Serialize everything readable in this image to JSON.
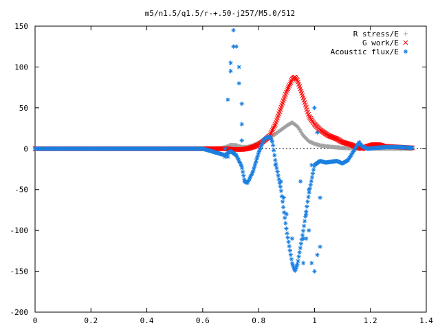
{
  "chart_data": {
    "type": "scatter",
    "title": "m5/n1.5/q1.5/r-+.50-j257/M5.0/512",
    "xlabel": "",
    "ylabel": "",
    "xlim": [
      0,
      1.4
    ],
    "ylim": [
      -200,
      150
    ],
    "xticks": [
      0,
      0.2,
      0.4,
      0.6,
      0.8,
      1,
      1.2,
      1.4
    ],
    "xtick_labels": [
      "0",
      "0.2",
      "0.4",
      "0.6",
      "0.8",
      "1",
      "1.2",
      "1.4"
    ],
    "yticks": [
      -200,
      -150,
      -100,
      -50,
      0,
      50,
      100,
      150
    ],
    "ytick_labels": [
      "-200",
      "-150",
      "-100",
      "-50",
      "0",
      "50",
      "100",
      "150"
    ],
    "grid": false,
    "legend_position": "top-right",
    "series": [
      {
        "name": "R stress/E",
        "marker": "plus",
        "color": "#a0a0a0",
        "points": [
          [
            0,
            0
          ],
          [
            0.6,
            0
          ],
          [
            0.66,
            0.3
          ],
          [
            0.68,
            1.5
          ],
          [
            0.7,
            4.5
          ],
          [
            0.72,
            4
          ],
          [
            0.74,
            2
          ],
          [
            0.76,
            2
          ],
          [
            0.78,
            4
          ],
          [
            0.8,
            7
          ],
          [
            0.82,
            10
          ],
          [
            0.84,
            13
          ],
          [
            0.86,
            18
          ],
          [
            0.88,
            23
          ],
          [
            0.9,
            28
          ],
          [
            0.92,
            32
          ],
          [
            0.94,
            27
          ],
          [
            0.96,
            16
          ],
          [
            0.98,
            9
          ],
          [
            1.0,
            6
          ],
          [
            1.02,
            4
          ],
          [
            1.05,
            2.5
          ],
          [
            1.1,
            1
          ],
          [
            1.15,
            0.5
          ],
          [
            1.2,
            0.3
          ],
          [
            1.25,
            0.2
          ],
          [
            1.3,
            0.1
          ],
          [
            1.35,
            0
          ]
        ]
      },
      {
        "name": "G work/E",
        "marker": "x",
        "color": "#ff0000",
        "points": [
          [
            0,
            0
          ],
          [
            0.6,
            0
          ],
          [
            0.68,
            0
          ],
          [
            0.7,
            -0.5
          ],
          [
            0.72,
            -1
          ],
          [
            0.74,
            -1
          ],
          [
            0.76,
            0
          ],
          [
            0.78,
            2
          ],
          [
            0.8,
            5
          ],
          [
            0.82,
            10
          ],
          [
            0.84,
            16
          ],
          [
            0.86,
            30
          ],
          [
            0.88,
            50
          ],
          [
            0.9,
            70
          ],
          [
            0.92,
            85
          ],
          [
            0.93,
            88
          ],
          [
            0.94,
            83
          ],
          [
            0.96,
            62
          ],
          [
            0.98,
            40
          ],
          [
            1.0,
            30
          ],
          [
            1.02,
            23
          ],
          [
            1.05,
            16
          ],
          [
            1.08,
            12
          ],
          [
            1.1,
            8
          ],
          [
            1.13,
            5
          ],
          [
            1.15,
            2
          ],
          [
            1.17,
            0
          ],
          [
            1.19,
            3
          ],
          [
            1.21,
            5
          ],
          [
            1.23,
            5
          ],
          [
            1.25,
            3
          ],
          [
            1.3,
            2
          ],
          [
            1.35,
            1
          ]
        ]
      },
      {
        "name": "Acoustic flux/E",
        "marker": "star",
        "color": "#1a7fe0",
        "points": [
          [
            0,
            0
          ],
          [
            0.6,
            0
          ],
          [
            0.68,
            -8
          ],
          [
            0.7,
            -3
          ],
          [
            0.72,
            -8
          ],
          [
            0.74,
            -22
          ],
          [
            0.75,
            -40
          ],
          [
            0.76,
            -42
          ],
          [
            0.78,
            -28
          ],
          [
            0.8,
            -5
          ],
          [
            0.82,
            12
          ],
          [
            0.84,
            15
          ],
          [
            0.85,
            8
          ],
          [
            0.86,
            -15
          ],
          [
            0.88,
            -50
          ],
          [
            0.9,
            -100
          ],
          [
            0.92,
            -140
          ],
          [
            0.93,
            -150
          ],
          [
            0.94,
            -140
          ],
          [
            0.96,
            -100
          ],
          [
            0.98,
            -55
          ],
          [
            1.0,
            -20
          ],
          [
            1.02,
            -15
          ],
          [
            1.04,
            -17
          ],
          [
            1.06,
            -16
          ],
          [
            1.08,
            -15
          ],
          [
            1.1,
            -18
          ],
          [
            1.12,
            -14
          ],
          [
            1.14,
            -3
          ],
          [
            1.16,
            8
          ],
          [
            1.17,
            3
          ],
          [
            1.19,
            0
          ],
          [
            1.22,
            1
          ],
          [
            1.26,
            2
          ],
          [
            1.3,
            2
          ],
          [
            1.35,
            1
          ]
        ],
        "scattered": [
          [
            0.68,
            0
          ],
          [
            0.68,
            -10
          ],
          [
            0.69,
            60
          ],
          [
            0.69,
            -10
          ],
          [
            0.7,
            95
          ],
          [
            0.7,
            105
          ],
          [
            0.71,
            125
          ],
          [
            0.71,
            145
          ],
          [
            0.72,
            125
          ],
          [
            0.73,
            100
          ],
          [
            0.73,
            80
          ],
          [
            0.74,
            55
          ],
          [
            0.74,
            30
          ],
          [
            0.74,
            10
          ],
          [
            0.75,
            -40
          ],
          [
            0.86,
            -20
          ],
          [
            0.88,
            -40
          ],
          [
            0.89,
            -60
          ],
          [
            0.9,
            -80
          ],
          [
            0.92,
            -110
          ],
          [
            0.95,
            -40
          ],
          [
            0.96,
            -110
          ],
          [
            0.96,
            -140
          ],
          [
            0.97,
            -80
          ],
          [
            0.97,
            -110
          ],
          [
            0.98,
            -50
          ],
          [
            0.98,
            -100
          ],
          [
            0.99,
            -20
          ],
          [
            0.99,
            -140
          ],
          [
            1.0,
            50
          ],
          [
            1.0,
            -150
          ],
          [
            1.01,
            -130
          ],
          [
            1.01,
            20
          ],
          [
            1.02,
            -60
          ],
          [
            1.02,
            -120
          ]
        ]
      }
    ]
  }
}
